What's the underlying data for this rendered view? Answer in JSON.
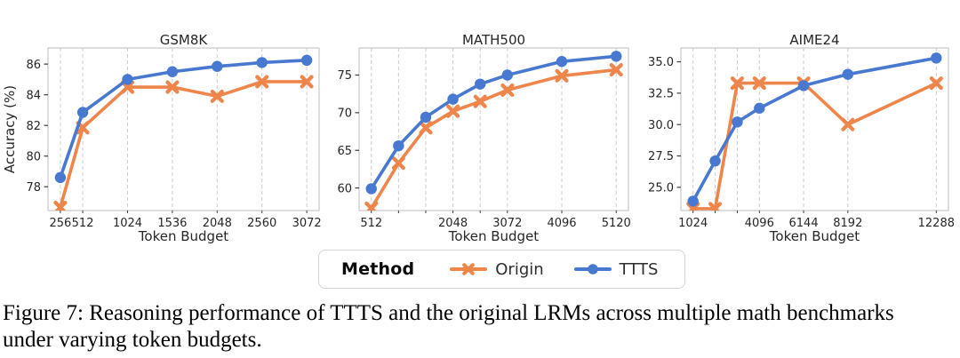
{
  "figure": {
    "caption_line1": "Figure 7: Reasoning performance of TTTS and the original LRMs across multiple math benchmarks",
    "caption_line2": "under varying token budgets."
  },
  "legend": {
    "title": "Method",
    "items": [
      {
        "label": "Origin",
        "marker": "x",
        "color": "#ee854a"
      },
      {
        "label": "TTTS",
        "marker": "circle",
        "color": "#4878d0"
      }
    ]
  },
  "style": {
    "grid_color": "#cccccc",
    "spine_color": "#c9c9c9",
    "tick_color": "#3d3d3d",
    "text_color": "#262626",
    "origin_color": "#ee854a",
    "ttts_color": "#4878d0"
  },
  "chart_data": [
    {
      "type": "line",
      "title": "GSM8K",
      "xlabel": "Token Budget",
      "ylabel": "Accuracy (%)",
      "x": [
        256,
        512,
        1024,
        1536,
        2048,
        2560,
        3072
      ],
      "xticks_labeled": [
        256,
        512,
        1024,
        1536,
        2048,
        2560,
        3072
      ],
      "xtick_labels": [
        "256",
        "512",
        "1024",
        "1536",
        "2048",
        "2560",
        "3072"
      ],
      "yticks": [
        78,
        80,
        82,
        84,
        86
      ],
      "ytick_labels": [
        "78",
        "80",
        "82",
        "84",
        "86"
      ],
      "xlim": [
        115,
        3213
      ],
      "ylim": [
        76.45,
        87.05
      ],
      "grid": "x-dashed",
      "series": [
        {
          "name": "Origin",
          "marker": "x",
          "color": "#ee854a",
          "values": [
            76.65,
            81.85,
            84.5,
            84.5,
            83.9,
            84.85,
            84.85
          ]
        },
        {
          "name": "TTTS",
          "marker": "circle",
          "color": "#4878d0",
          "values": [
            78.6,
            82.85,
            85.0,
            85.5,
            85.85,
            86.1,
            86.25
          ]
        }
      ]
    },
    {
      "type": "line",
      "title": "MATH500",
      "xlabel": "Token Budget",
      "ylabel": "",
      "x": [
        512,
        1024,
        1536,
        2048,
        2560,
        3072,
        4096,
        5120
      ],
      "xticks_labeled": [
        512,
        2048,
        3072,
        4096,
        5120
      ],
      "xtick_labels": [
        "512",
        "2048",
        "3072",
        "4096",
        "5120"
      ],
      "yticks": [
        60,
        65,
        70,
        75
      ],
      "ytick_labels": [
        "60",
        "65",
        "70",
        "75"
      ],
      "xlim": [
        282,
        5350
      ],
      "ylim": [
        57.0,
        78.6
      ],
      "grid": "x-dashed",
      "series": [
        {
          "name": "Origin",
          "marker": "x",
          "color": "#ee854a",
          "values": [
            57.3,
            63.3,
            68.0,
            70.2,
            71.5,
            73.0,
            74.9,
            75.7
          ]
        },
        {
          "name": "TTTS",
          "marker": "circle",
          "color": "#4878d0",
          "values": [
            59.9,
            65.6,
            69.4,
            71.8,
            73.8,
            75.0,
            76.8,
            77.5
          ]
        }
      ]
    },
    {
      "type": "line",
      "title": "AIME24",
      "xlabel": "Token Budget",
      "ylabel": "",
      "x": [
        1024,
        2048,
        3072,
        4096,
        6144,
        8192,
        12288
      ],
      "xticks_labeled": [
        1024,
        4096,
        6144,
        8192,
        12288
      ],
      "xtick_labels": [
        "1024",
        "4096",
        "6144",
        "8192",
        "12288"
      ],
      "yticks": [
        25.0,
        27.5,
        30.0,
        32.5,
        35.0
      ],
      "ytick_labels": [
        "25.0",
        "27.5",
        "30.0",
        "32.5",
        "35.0"
      ],
      "xlim": [
        461,
        12851
      ],
      "ylim": [
        23.15,
        36.1
      ],
      "grid": "x-dashed",
      "series": [
        {
          "name": "Origin",
          "marker": "x",
          "color": "#ee854a",
          "values": [
            23.3,
            23.3,
            33.3,
            33.3,
            33.3,
            30.0,
            33.3
          ]
        },
        {
          "name": "TTTS",
          "marker": "circle",
          "color": "#4878d0",
          "values": [
            23.9,
            27.1,
            30.2,
            31.3,
            33.1,
            34.0,
            35.3
          ]
        }
      ]
    }
  ]
}
